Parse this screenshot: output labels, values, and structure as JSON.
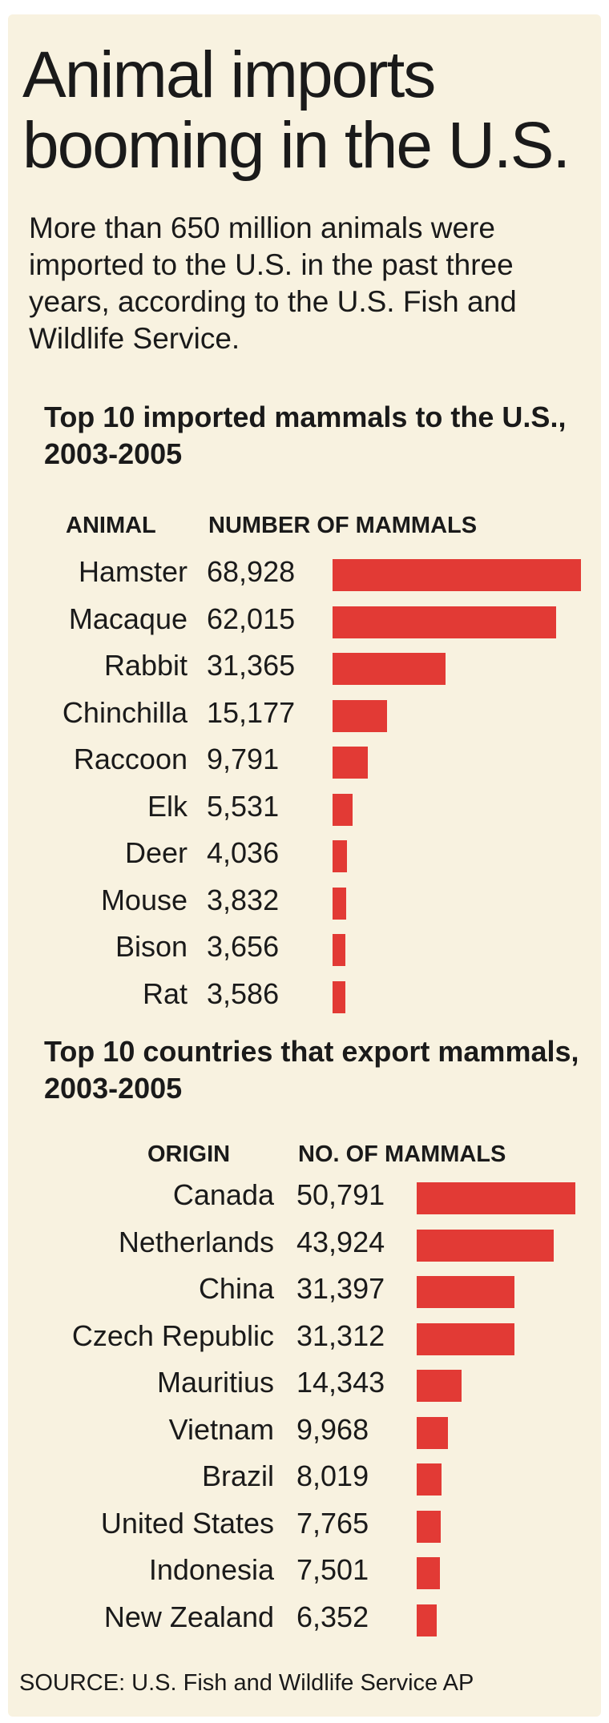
{
  "header": {
    "title_line1": "Animal imports",
    "title_line2": "booming in the U.S.",
    "intro": "More than 650 million animals were imported to the U.S. in the past three years, according to the U.S. Fish and Wildlife Service."
  },
  "colors": {
    "bar": "#e23a35",
    "background": "#f8f2e0",
    "text": "#1a1a1a"
  },
  "chart_data": [
    {
      "type": "bar",
      "orientation": "horizontal",
      "title": "Top 10 imported mammals to the U.S., 2003-2005",
      "category_header": "ANIMAL",
      "value_header": "NUMBER OF MAMMALS",
      "categories": [
        "Hamster",
        "Macaque",
        "Rabbit",
        "Chinchilla",
        "Raccoon",
        "Elk",
        "Deer",
        "Mouse",
        "Bison",
        "Rat"
      ],
      "values": [
        68928,
        62015,
        31365,
        15177,
        9791,
        5531,
        4036,
        3832,
        3656,
        3586
      ],
      "value_labels": [
        "68,928",
        "62,015",
        "31,365",
        "15,177",
        "9,791",
        "5,531",
        "4,036",
        "3,832",
        "3,656",
        "3,586"
      ]
    },
    {
      "type": "bar",
      "orientation": "horizontal",
      "title": "Top 10 countries that export mammals, 2003-2005",
      "category_header": "ORIGIN",
      "value_header": "NO. OF MAMMALS",
      "categories": [
        "Canada",
        "Netherlands",
        "China",
        "Czech Republic",
        "Mauritius",
        "Vietnam",
        "Brazil",
        "United States",
        "Indonesia",
        "New Zealand"
      ],
      "values": [
        50791,
        43924,
        31397,
        31312,
        14343,
        9968,
        8019,
        7765,
        7501,
        6352
      ],
      "value_labels": [
        "50,791",
        "43,924",
        "31,397",
        "31,312",
        "14,343",
        "9,968",
        "8,019",
        "7,765",
        "7,501",
        "6,352"
      ]
    }
  ],
  "footer": {
    "source": "SOURCE: U.S. Fish and Wildlife Service  AP"
  }
}
